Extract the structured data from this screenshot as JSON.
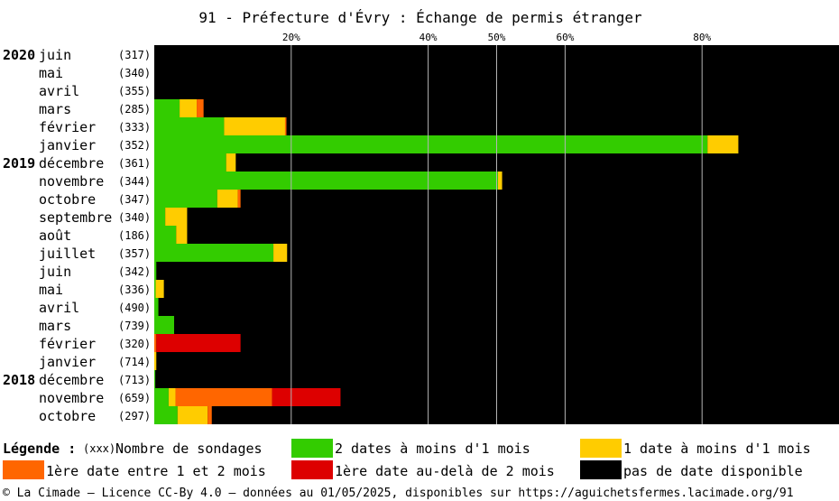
{
  "chart_data": {
    "type": "bar",
    "orientation": "horizontal",
    "stacked": true,
    "title": "91 - Préfecture d'Évry : Échange de permis étranger",
    "xlim": [
      0,
      100
    ],
    "ticks": [
      {
        "value": 20,
        "label": "20%"
      },
      {
        "value": 40,
        "label": "40%"
      },
      {
        "value": 50,
        "label": "50%"
      },
      {
        "value": 60,
        "label": "60%"
      },
      {
        "value": 80,
        "label": "80%"
      }
    ],
    "grid": true,
    "series": [
      {
        "key": "green",
        "name": "2 dates à moins d'1 mois",
        "color": "#33cc00"
      },
      {
        "key": "yellow",
        "name": "1 date à moins d'1 mois",
        "color": "#ffcc00"
      },
      {
        "key": "orange",
        "name": "1ère date entre 1 et 2 mois",
        "color": "#ff6600"
      },
      {
        "key": "red",
        "name": "1ère date au-delà de 2 mois",
        "color": "#dd0000"
      },
      {
        "key": "black",
        "name": "pas de date disponible",
        "color": "#000000"
      }
    ],
    "rows": [
      {
        "year": "2020",
        "month": "juin",
        "count": "(317)",
        "green": 0,
        "yellow": 0,
        "orange": 0,
        "red": 0
      },
      {
        "year": "",
        "month": "mai",
        "count": "(340)",
        "green": 0,
        "yellow": 0,
        "orange": 0,
        "red": 0
      },
      {
        "year": "",
        "month": "avril",
        "count": "(355)",
        "green": 0,
        "yellow": 0,
        "orange": 0,
        "red": 0
      },
      {
        "year": "",
        "month": "mars",
        "count": "(285)",
        "green": 3.7,
        "yellow": 2.5,
        "orange": 1.0,
        "red": 0
      },
      {
        "year": "",
        "month": "février",
        "count": "(333)",
        "green": 10.2,
        "yellow": 8.9,
        "orange": 0.2,
        "red": 0
      },
      {
        "year": "",
        "month": "janvier",
        "count": "(352)",
        "green": 80.8,
        "yellow": 4.5,
        "orange": 0,
        "red": 0
      },
      {
        "year": "2019",
        "month": "décembre",
        "count": "(361)",
        "green": 10.5,
        "yellow": 1.4,
        "orange": 0,
        "red": 0
      },
      {
        "year": "",
        "month": "novembre",
        "count": "(344)",
        "green": 50.2,
        "yellow": 0.6,
        "orange": 0,
        "red": 0
      },
      {
        "year": "",
        "month": "octobre",
        "count": "(347)",
        "green": 9.2,
        "yellow": 3.0,
        "orange": 0.4,
        "red": 0
      },
      {
        "year": "",
        "month": "septembre",
        "count": "(340)",
        "green": 1.6,
        "yellow": 3.2,
        "orange": 0,
        "red": 0
      },
      {
        "year": "",
        "month": "août",
        "count": "(186)",
        "green": 3.2,
        "yellow": 1.6,
        "orange": 0,
        "red": 0
      },
      {
        "year": "",
        "month": "juillet",
        "count": "(357)",
        "green": 17.4,
        "yellow": 2.0,
        "orange": 0,
        "red": 0
      },
      {
        "year": "",
        "month": "juin",
        "count": "(342)",
        "green": 0.3,
        "yellow": 0,
        "orange": 0,
        "red": 0
      },
      {
        "year": "",
        "month": "mai",
        "count": "(336)",
        "green": 0.2,
        "yellow": 1.2,
        "orange": 0,
        "red": 0
      },
      {
        "year": "",
        "month": "avril",
        "count": "(490)",
        "green": 0.6,
        "yellow": 0,
        "orange": 0,
        "red": 0
      },
      {
        "year": "",
        "month": "mars",
        "count": "(739)",
        "green": 2.9,
        "yellow": 0,
        "orange": 0,
        "red": 0
      },
      {
        "year": "",
        "month": "février",
        "count": "(320)",
        "green": 0,
        "yellow": 0,
        "orange": 0.3,
        "red": 12.3
      },
      {
        "year": "",
        "month": "janvier",
        "count": "(714)",
        "green": 0,
        "yellow": 0.3,
        "orange": 0,
        "red": 0
      },
      {
        "year": "2018",
        "month": "décembre",
        "count": "(713)",
        "green": 0.15,
        "yellow": 0,
        "orange": 0,
        "red": 0
      },
      {
        "year": "",
        "month": "novembre",
        "count": "(659)",
        "green": 2.1,
        "yellow": 1.0,
        "orange": 14.1,
        "red": 10.0
      },
      {
        "year": "",
        "month": "octobre",
        "count": "(297)",
        "green": 3.4,
        "yellow": 4.4,
        "orange": 0.6,
        "red": 0
      }
    ]
  },
  "legend": {
    "title": "Légende :",
    "count_sample": "(xxx)",
    "count_label": "Nombre de sondages"
  },
  "footer": "© La Cimade — Licence CC-By 4.0 — données au 01/05/2025, disponibles sur https://aguichetsfermes.lacimade.org/91"
}
